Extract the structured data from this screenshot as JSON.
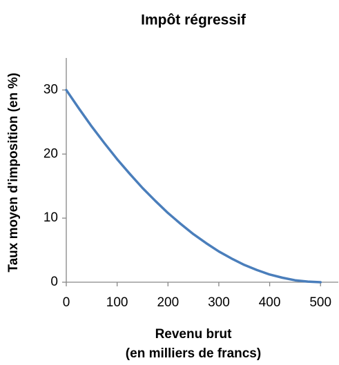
{
  "chart_data": {
    "type": "line",
    "title": "Impôt régressif",
    "xlabel": [
      "Revenu brut",
      "(en milliers de francs)"
    ],
    "ylabel": "Taux moyen d'imposition (en %)",
    "x": [
      0,
      25,
      50,
      75,
      100,
      125,
      150,
      175,
      200,
      225,
      250,
      275,
      300,
      325,
      350,
      375,
      400,
      425,
      450,
      475,
      500
    ],
    "series": [
      {
        "color": "#4a7ebb",
        "values": [
          30,
          27.1,
          24.3,
          21.7,
          19.2,
          16.9,
          14.7,
          12.7,
          10.8,
          9.1,
          7.5,
          6.1,
          4.8,
          3.7,
          2.7,
          1.9,
          1.2,
          0.7,
          0.3,
          0.1,
          0
        ]
      }
    ],
    "xlim": [
      0,
      535
    ],
    "xticks": [
      0,
      100,
      200,
      300,
      400,
      500
    ],
    "ylim": [
      0,
      35
    ],
    "yticks": [
      0,
      10,
      20,
      30
    ],
    "grid": false
  }
}
